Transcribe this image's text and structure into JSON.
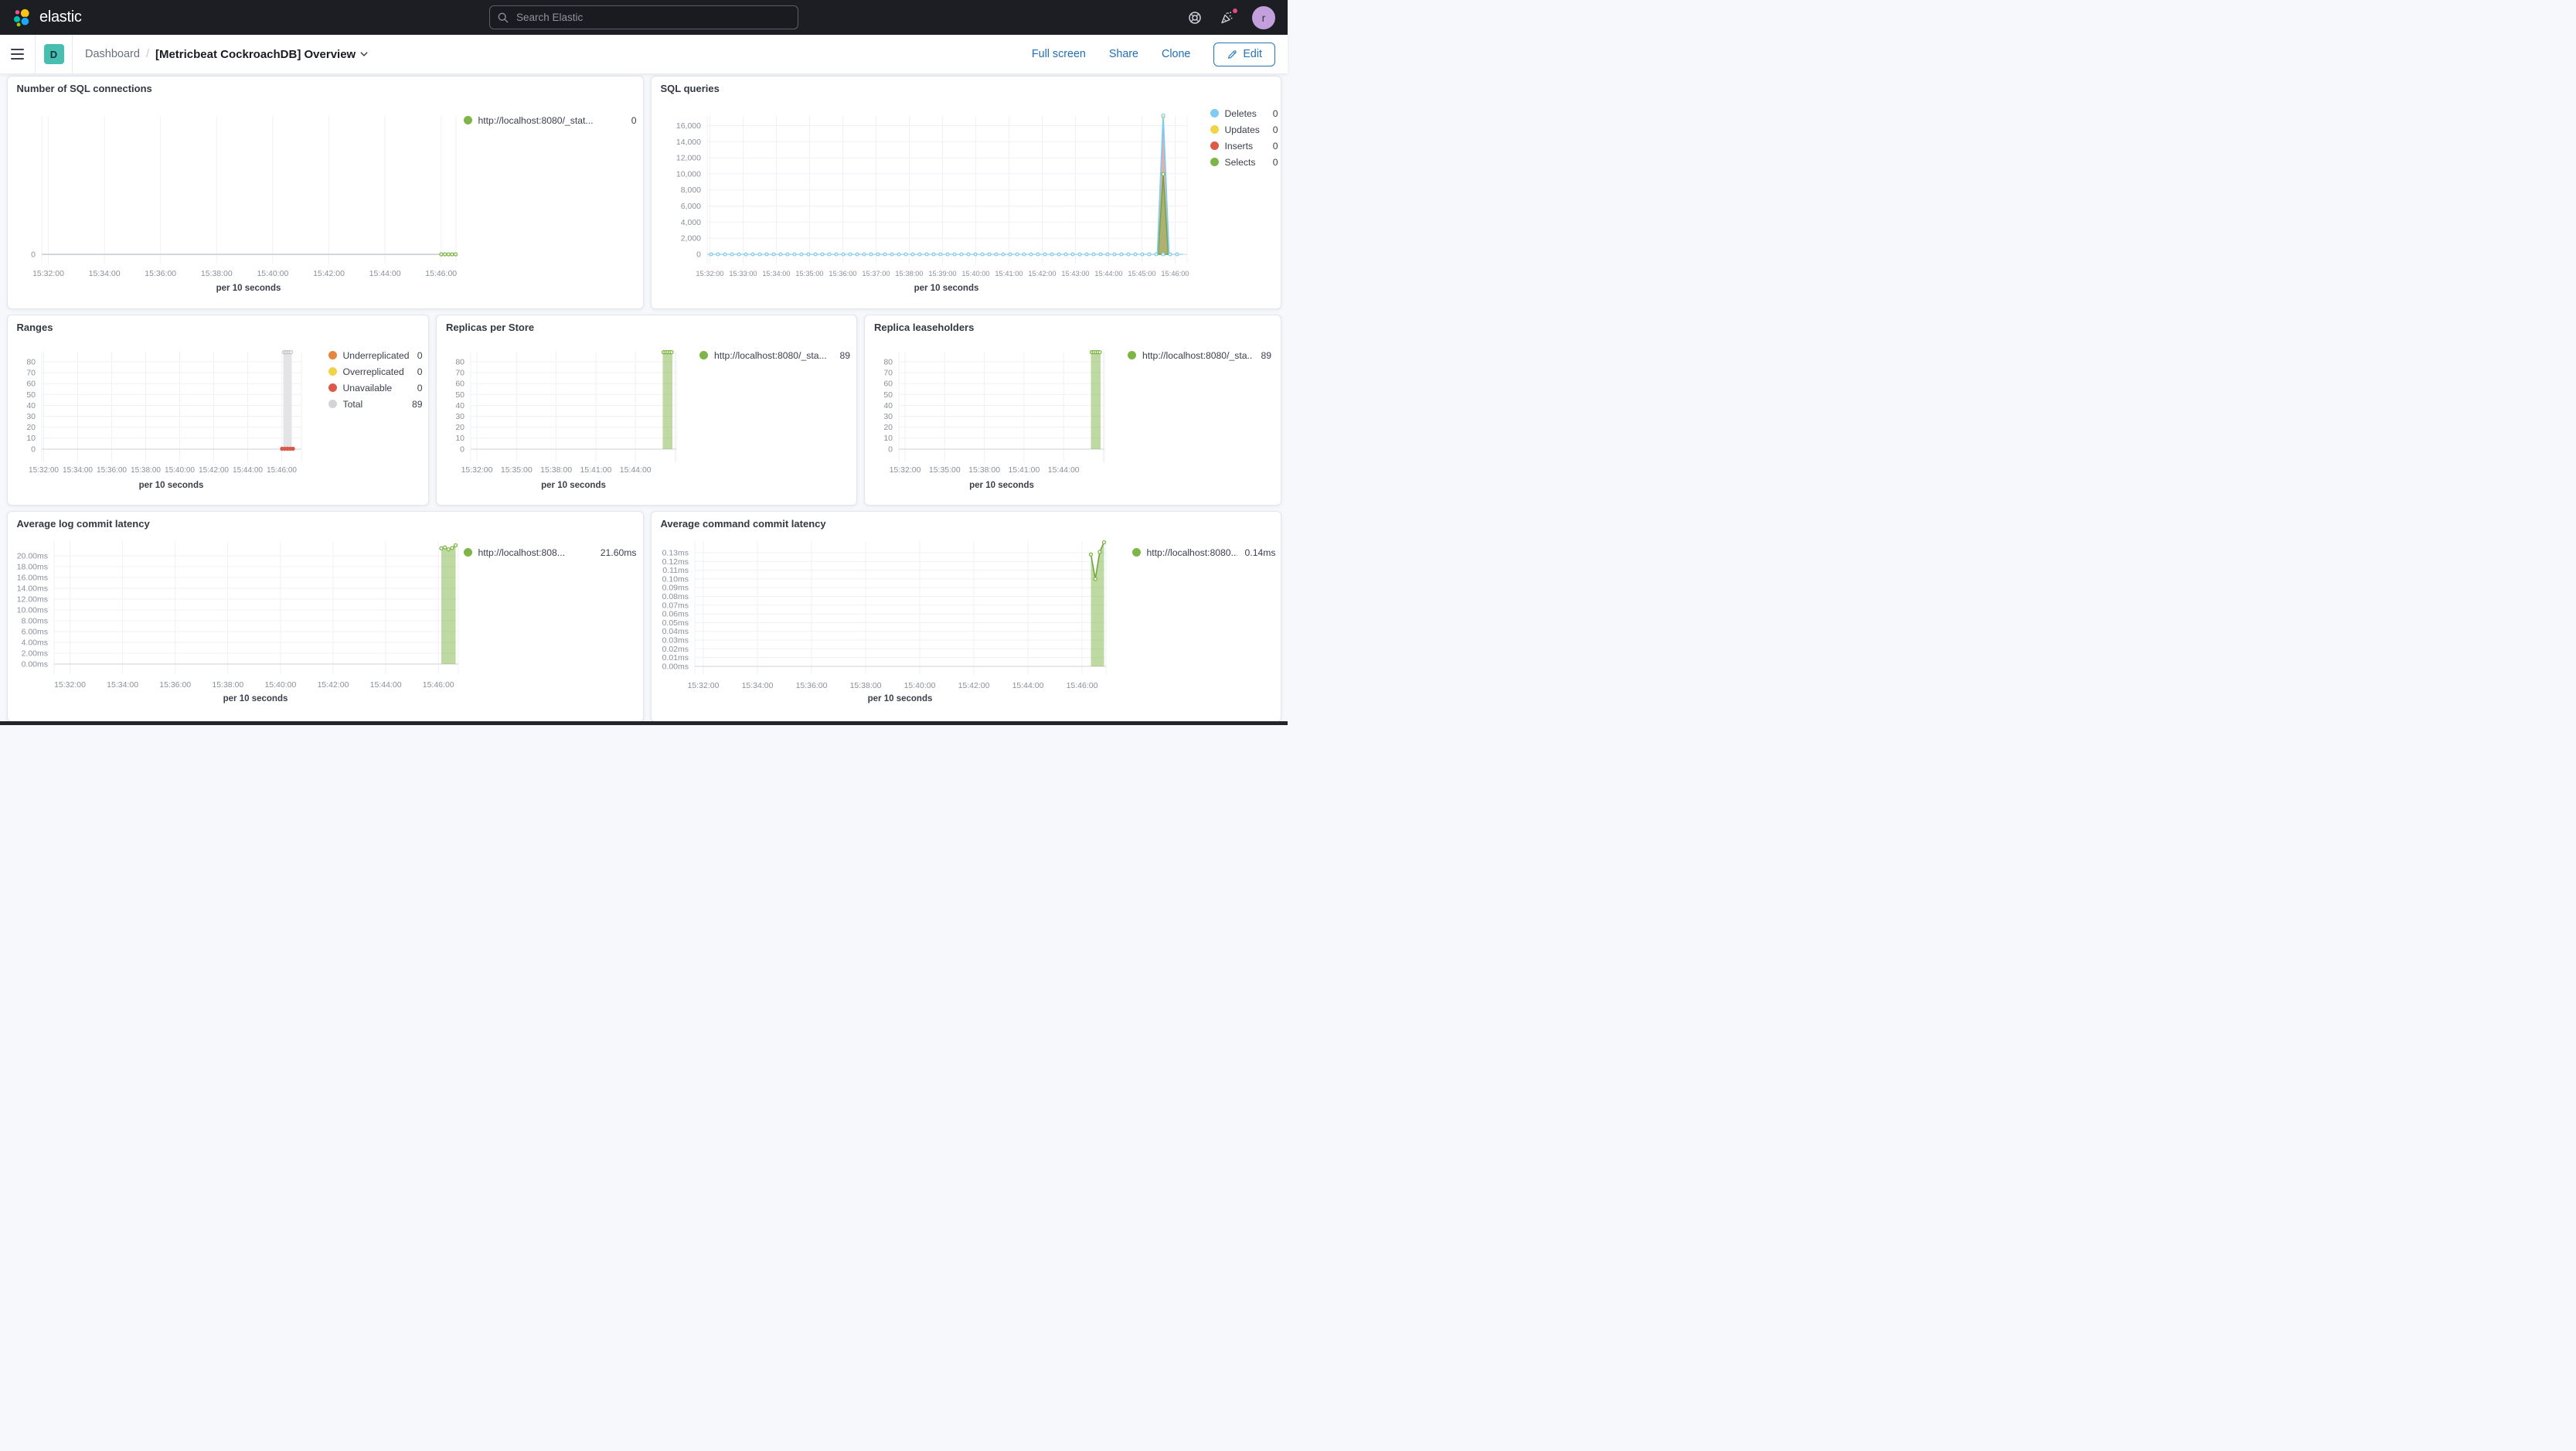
{
  "header": {
    "logo_text": "elastic",
    "search_placeholder": "Search Elastic",
    "avatar_initial": "r"
  },
  "navbar": {
    "breadcrumb_root": "Dashboard",
    "breadcrumb_sep": "/",
    "title": "[Metricbeat CockroachDB] Overview",
    "actions": {
      "full_screen": "Full screen",
      "share": "Share",
      "clone": "Clone",
      "edit": "Edit"
    }
  },
  "colors": {
    "accent_blue": "#1E6FB5",
    "series_green": "#7DB646",
    "series_blue": "#7FCBF1",
    "series_yellow": "#F1D34A",
    "series_red": "#DD5A4B",
    "series_orange": "#E8853D",
    "series_gray": "#D3D4D8",
    "badge_teal": "#48BEB1",
    "notification_pink": "#E7478B",
    "avatar_purple": "#C3A0DC"
  },
  "chart_data": [
    {
      "id": "sql-connections",
      "type": "line",
      "title": "Number of SQL connections",
      "x_axis_title": "per 10 seconds",
      "legend_position": "right",
      "x_ticks": [
        "15:32:00",
        "15:34:00",
        "15:36:00",
        "15:38:00",
        "15:40:00",
        "15:42:00",
        "15:44:00",
        "15:46:00"
      ],
      "y_ticks": [
        "0"
      ],
      "y_domain": [
        0,
        1
      ],
      "series": [
        {
          "name": "http://localhost:8080/_stat...",
          "color": "#7DB646",
          "points": [
            [
              "15:46:00",
              0
            ],
            [
              "15:46:08",
              0
            ],
            [
              "15:46:16",
              0
            ],
            [
              "15:46:24",
              0
            ],
            [
              "15:46:31",
              0
            ]
          ]
        }
      ],
      "legend": [
        {
          "label": "http://localhost:8080/_stat...",
          "value": "0",
          "color": "#7DB646"
        }
      ]
    },
    {
      "id": "sql-queries",
      "type": "area",
      "title": "SQL queries",
      "x_axis_title": "per 10 seconds",
      "legend_position": "right",
      "x_ticks": [
        "15:32:00",
        "15:33:00",
        "15:34:00",
        "15:35:00",
        "15:36:00",
        "15:37:00",
        "15:38:00",
        "15:39:00",
        "15:40:00",
        "15:41:00",
        "15:42:00",
        "15:43:00",
        "15:44:00",
        "15:45:00",
        "15:46:00"
      ],
      "y_ticks": [
        "16,000",
        "14,000",
        "12,000",
        "10,000",
        "8,000",
        "6,000",
        "4,000",
        "2,000",
        "0"
      ],
      "y_domain": [
        0,
        17250
      ],
      "series": [
        {
          "name": "Deletes",
          "color": "#7FCBF1",
          "flat_value": 0,
          "peak": [
            "15:45:38",
            17300
          ]
        },
        {
          "name": "Updates",
          "color": "#F1D34A",
          "peak": [
            "15:45:38",
            17100
          ]
        },
        {
          "name": "Inserts",
          "color": "#DD5A4B",
          "spike": [
            [
              "15:45:30",
              0
            ],
            [
              "15:45:38",
              17000
            ],
            [
              "15:45:46",
              0
            ]
          ]
        },
        {
          "name": "Selects",
          "color": "#7DB646",
          "spike": [
            [
              "15:45:30",
              0
            ],
            [
              "15:45:38",
              10000
            ],
            [
              "15:45:46",
              0
            ]
          ]
        }
      ],
      "legend": [
        {
          "label": "Deletes",
          "value": "0",
          "color": "#7FCBF1"
        },
        {
          "label": "Updates",
          "value": "0",
          "color": "#F1D34A"
        },
        {
          "label": "Inserts",
          "value": "0",
          "color": "#DD5A4B"
        },
        {
          "label": "Selects",
          "value": "0",
          "color": "#7DB646"
        }
      ]
    },
    {
      "id": "ranges",
      "type": "bar",
      "title": "Ranges",
      "x_axis_title": "per 10 seconds",
      "legend_position": "right",
      "x_ticks": [
        "15:32:00",
        "15:34:00",
        "15:36:00",
        "15:38:00",
        "15:40:00",
        "15:42:00",
        "15:44:00",
        "15:46:00"
      ],
      "y_ticks": [
        "80",
        "70",
        "60",
        "50",
        "40",
        "30",
        "20",
        "10",
        "0"
      ],
      "y_domain": [
        0,
        89.4
      ],
      "series": [
        {
          "name": "Total",
          "color": "#D3D4D8",
          "bar_window": [
            "15:45:30",
            "15:46:10"
          ],
          "value": 89
        },
        {
          "name": "Unavailable",
          "color": "#DD5A4B",
          "value": 0
        },
        {
          "name": "Underreplicated",
          "color": "#E8853D",
          "value": 0
        },
        {
          "name": "Overreplicated",
          "color": "#F1D34A",
          "value": 0
        }
      ],
      "legend": [
        {
          "label": "Underreplicated",
          "value": "0",
          "color": "#E8853D"
        },
        {
          "label": "Overreplicated",
          "value": "0",
          "color": "#F1D34A"
        },
        {
          "label": "Unavailable",
          "value": "0",
          "color": "#DD5A4B"
        },
        {
          "label": "Total",
          "value": "89",
          "color": "#D3D4D8"
        }
      ]
    },
    {
      "id": "replicas-per-store",
      "type": "bar",
      "title": "Replicas per Store",
      "x_axis_title": "per 10 seconds",
      "legend_position": "right",
      "x_ticks": [
        "15:32:00",
        "15:35:00",
        "15:38:00",
        "15:41:00",
        "15:44:00"
      ],
      "y_ticks": [
        "80",
        "70",
        "60",
        "50",
        "40",
        "30",
        "20",
        "10",
        "0"
      ],
      "y_domain": [
        0,
        89.4
      ],
      "series": [
        {
          "name": "http://localhost:8080/_sta...",
          "color": "#7DB646",
          "bar_window": [
            "15:45:30",
            "15:46:10"
          ],
          "value": 89
        }
      ],
      "legend": [
        {
          "label": "http://localhost:8080/_sta...",
          "value": "89",
          "color": "#7DB646"
        }
      ]
    },
    {
      "id": "replica-leaseholders",
      "type": "bar",
      "title": "Replica leaseholders",
      "x_axis_title": "per 10 seconds",
      "legend_position": "right",
      "x_ticks": [
        "15:32:00",
        "15:35:00",
        "15:38:00",
        "15:41:00",
        "15:44:00"
      ],
      "y_ticks": [
        "80",
        "70",
        "60",
        "50",
        "40",
        "30",
        "20",
        "10",
        "0"
      ],
      "y_domain": [
        0,
        89.4
      ],
      "series": [
        {
          "name": "http://localhost:8080/_sta...",
          "color": "#7DB646",
          "bar_window": [
            "15:45:30",
            "15:46:10"
          ],
          "value": 89
        }
      ],
      "legend": [
        {
          "label": "http://localhost:8080/_sta...",
          "value": "89",
          "color": "#7DB646"
        }
      ]
    },
    {
      "id": "avg-log-commit-latency",
      "type": "area",
      "title": "Average log commit latency",
      "x_axis_title": "per 10 seconds",
      "legend_position": "right",
      "x_ticks": [
        "15:32:00",
        "15:34:00",
        "15:36:00",
        "15:38:00",
        "15:40:00",
        "15:42:00",
        "15:44:00",
        "15:46:00"
      ],
      "y_ticks": [
        "20.00ms",
        "18.00ms",
        "16.00ms",
        "14.00ms",
        "12.00ms",
        "10.00ms",
        "8.00ms",
        "6.00ms",
        "4.00ms",
        "2.00ms",
        "0.00ms"
      ],
      "y_domain": [
        0,
        22.72
      ],
      "series": [
        {
          "name": "http://localhost:808...",
          "color": "#7DB646",
          "points": [
            [
              "15:45:30",
              21.4
            ],
            [
              "15:45:40",
              21.55
            ],
            [
              "15:45:50",
              21.2
            ],
            [
              "15:46:00",
              21.45
            ],
            [
              "15:46:10",
              21.95
            ]
          ]
        }
      ],
      "legend": [
        {
          "label": "http://localhost:808...",
          "value": "21.60ms",
          "color": "#7DB646"
        }
      ]
    },
    {
      "id": "avg-command-commit-latency",
      "type": "area",
      "title": "Average command commit latency",
      "x_axis_title": "per 10 seconds",
      "legend_position": "right",
      "x_ticks": [
        "15:32:00",
        "15:34:00",
        "15:36:00",
        "15:38:00",
        "15:40:00",
        "15:42:00",
        "15:44:00",
        "15:46:00"
      ],
      "y_ticks": [
        "0.13ms",
        "0.12ms",
        "0.11ms",
        "0.10ms",
        "0.09ms",
        "0.08ms",
        "0.07ms",
        "0.06ms",
        "0.05ms",
        "0.04ms",
        "0.03ms",
        "0.02ms",
        "0.01ms",
        "0.00ms"
      ],
      "y_domain": [
        0,
        0.1433
      ],
      "series": [
        {
          "name": "http://localhost:8080...",
          "color": "#7DB646",
          "points": [
            [
              "15:45:30",
              0.128
            ],
            [
              "15:45:43",
              0.1
            ],
            [
              "15:45:56",
              0.131
            ],
            [
              "15:46:10",
              0.142
            ]
          ]
        }
      ],
      "legend": [
        {
          "label": "http://localhost:8080...",
          "value": "0.14ms",
          "color": "#7DB646"
        }
      ]
    }
  ]
}
